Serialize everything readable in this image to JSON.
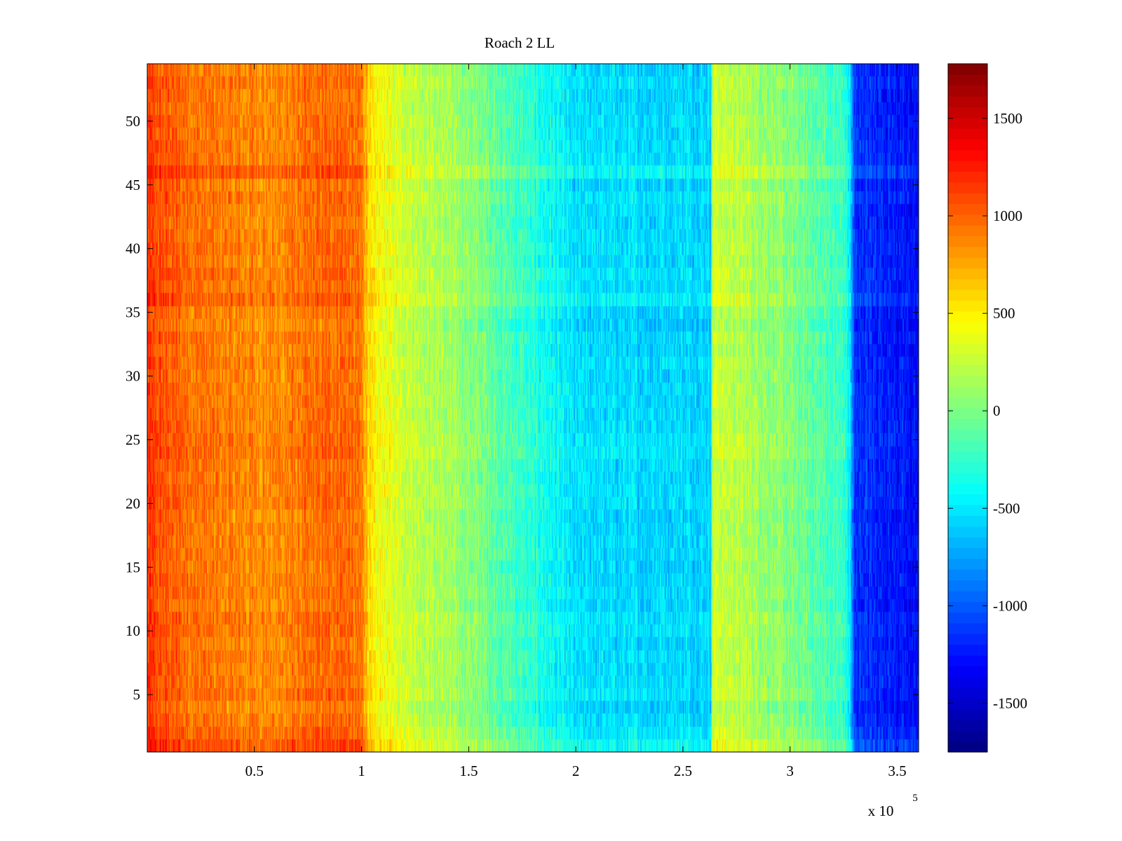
{
  "chart_data": {
    "type": "heatmap",
    "title": "Roach 2 LL",
    "xlabel": "",
    "ylabel": "",
    "x_multiplier_label": "x 10",
    "x_multiplier_exponent": "5",
    "x_range": [
      0,
      3.6
    ],
    "y_range": [
      0.5,
      54.5
    ],
    "x_ticks": [
      {
        "value": 0.5,
        "label": "0.5"
      },
      {
        "value": 1,
        "label": "1"
      },
      {
        "value": 1.5,
        "label": "1.5"
      },
      {
        "value": 2,
        "label": "2"
      },
      {
        "value": 2.5,
        "label": "2.5"
      },
      {
        "value": 3,
        "label": "3"
      },
      {
        "value": 3.5,
        "label": "3.5"
      }
    ],
    "y_ticks": [
      {
        "value": 5,
        "label": "5"
      },
      {
        "value": 10,
        "label": "10"
      },
      {
        "value": 15,
        "label": "15"
      },
      {
        "value": 20,
        "label": "20"
      },
      {
        "value": 25,
        "label": "25"
      },
      {
        "value": 30,
        "label": "30"
      },
      {
        "value": 35,
        "label": "35"
      },
      {
        "value": 40,
        "label": "40"
      },
      {
        "value": 45,
        "label": "45"
      },
      {
        "value": 50,
        "label": "50"
      }
    ],
    "rows": 54,
    "color_range": [
      -1750,
      1780
    ],
    "colormap": "jet",
    "colorbar_ticks": [
      {
        "value": 1500,
        "label": "1500"
      },
      {
        "value": 1000,
        "label": "1000"
      },
      {
        "value": 500,
        "label": "500"
      },
      {
        "value": 0,
        "label": "0"
      },
      {
        "value": -500,
        "label": "-500"
      },
      {
        "value": -1000,
        "label": "-1000"
      },
      {
        "value": -1500,
        "label": "-1500"
      }
    ],
    "column_profile": {
      "x": [
        0,
        0.05,
        0.3,
        0.6,
        0.9,
        1.0,
        1.05,
        1.2,
        1.5,
        1.8,
        2.0,
        2.3,
        2.6,
        2.63,
        2.64,
        2.7,
        3.0,
        3.25,
        3.28,
        3.3,
        3.45,
        3.6
      ],
      "value": [
        1150,
        1050,
        900,
        850,
        1000,
        900,
        450,
        300,
        50,
        -300,
        -550,
        -550,
        -550,
        -550,
        300,
        250,
        0,
        -250,
        -500,
        -1150,
        -1200,
        -1300
      ]
    },
    "row_offsets": [
      {
        "y": 1,
        "value": 150
      },
      {
        "y": 2,
        "value": 80
      },
      {
        "y": 4,
        "value": -40
      },
      {
        "y": 5,
        "value": 60
      },
      {
        "y": 10,
        "value": 60
      },
      {
        "y": 11,
        "value": 40
      },
      {
        "y": 13,
        "value": 30
      },
      {
        "y": 19,
        "value": -20
      },
      {
        "y": 24,
        "value": 80
      },
      {
        "y": 25,
        "value": 60
      },
      {
        "y": 26,
        "value": 30
      },
      {
        "y": 34,
        "value": -40
      },
      {
        "y": 35,
        "value": -30
      },
      {
        "y": 36,
        "value": 80
      },
      {
        "y": 38,
        "value": 60
      },
      {
        "y": 40,
        "value": 50
      },
      {
        "y": 44,
        "value": 30
      },
      {
        "y": 46,
        "value": 120
      },
      {
        "y": 47,
        "value": 40
      },
      {
        "y": 50,
        "value": 20
      }
    ],
    "noise_amplitude": 250
  }
}
